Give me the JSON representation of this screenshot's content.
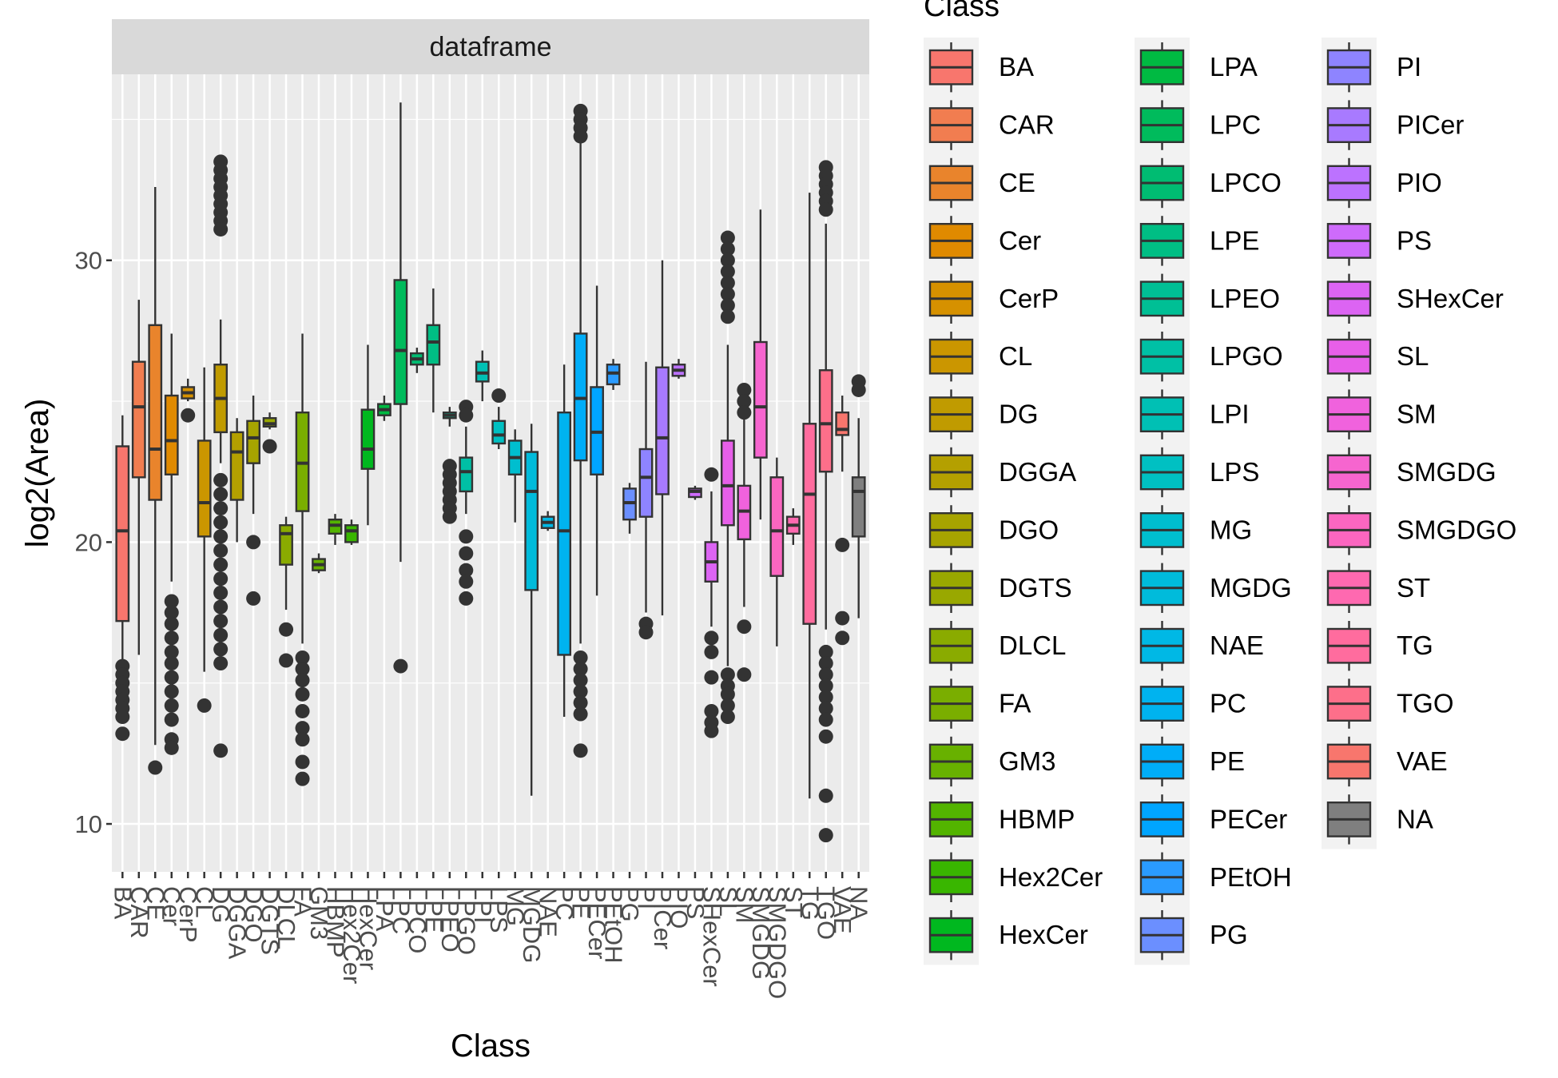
{
  "chart_data": {
    "type": "boxplot",
    "facet_title": "dataframe",
    "xlabel": "Class",
    "ylabel": "log2(Area)",
    "ylim": [
      8.3,
      36.6
    ],
    "yticks": [
      10,
      20,
      30
    ],
    "legend": {
      "title": "Class",
      "placement": "right",
      "columns": 3
    },
    "categories": [
      "BA",
      "CAR",
      "CE",
      "Cer",
      "CerP",
      "CL",
      "DG",
      "DGGA",
      "DGO",
      "DGTS",
      "DLCL",
      "FA",
      "GM3",
      "HBMP",
      "Hex2Cer",
      "HexCer",
      "LPA",
      "LPC",
      "LPCO",
      "LPE",
      "LPEO",
      "LPGO",
      "LPI",
      "LPS",
      "MG",
      "MGDG",
      "NAE",
      "PC",
      "PE",
      "PECer",
      "PEtOH",
      "PG",
      "PI",
      "PICer",
      "PIO",
      "PS",
      "SHexCer",
      "SL",
      "SM",
      "SMGDG",
      "SMGDGO",
      "ST",
      "TG",
      "TGO",
      "VAE",
      "NA"
    ],
    "series": [
      {
        "class": "BA",
        "color": "#F8766D",
        "whisker_low": 14.8,
        "q1": 17.2,
        "median": 20.4,
        "q3": 23.4,
        "whisker_high": 24.5,
        "outliers": [
          15.6,
          15.3,
          15.0,
          14.7,
          14.4,
          14.1,
          13.8,
          13.2
        ]
      },
      {
        "class": "CAR",
        "color": "#F17D50",
        "whisker_low": 16.0,
        "q1": 22.3,
        "median": 24.8,
        "q3": 26.4,
        "whisker_high": 28.6,
        "outliers": []
      },
      {
        "class": "CE",
        "color": "#E9842C",
        "whisker_low": 12.8,
        "q1": 21.5,
        "median": 23.3,
        "q3": 27.7,
        "whisker_high": 32.6,
        "outliers": [
          12.0
        ]
      },
      {
        "class": "Cer",
        "color": "#E08A00",
        "whisker_low": 18.6,
        "q1": 22.4,
        "median": 23.6,
        "q3": 25.2,
        "whisker_high": 27.4,
        "outliers": [
          17.9,
          17.5,
          17.1,
          16.6,
          16.1,
          15.7,
          15.2,
          14.7,
          14.2,
          13.7,
          13.0,
          12.7
        ]
      },
      {
        "class": "CerP",
        "color": "#D69100",
        "whisker_low": 25.0,
        "q1": 25.1,
        "median": 25.3,
        "q3": 25.5,
        "whisker_high": 25.8,
        "outliers": [
          24.5
        ]
      },
      {
        "class": "CL",
        "color": "#CB9600",
        "whisker_low": 15.4,
        "q1": 20.2,
        "median": 21.4,
        "q3": 23.6,
        "whisker_high": 26.2,
        "outliers": [
          14.2
        ]
      },
      {
        "class": "DG",
        "color": "#C09B00",
        "whisker_low": 22.8,
        "q1": 23.9,
        "median": 25.1,
        "q3": 26.3,
        "whisker_high": 27.9,
        "outliers": [
          33.5,
          33.2,
          32.9,
          32.6,
          32.3,
          32.0,
          31.7,
          31.4,
          31.1,
          22.2,
          21.7,
          21.2,
          20.7,
          20.2,
          19.7,
          19.2,
          18.7,
          18.2,
          17.7,
          17.2,
          16.7,
          16.2,
          15.7,
          12.6
        ]
      },
      {
        "class": "DGGA",
        "color": "#B4A000",
        "whisker_low": 20.0,
        "q1": 21.5,
        "median": 23.2,
        "q3": 23.9,
        "whisker_high": 24.4,
        "outliers": []
      },
      {
        "class": "DGO",
        "color": "#A7A400",
        "whisker_low": 21.0,
        "q1": 22.8,
        "median": 23.7,
        "q3": 24.3,
        "whisker_high": 25.2,
        "outliers": [
          20.0,
          18.0
        ]
      },
      {
        "class": "DGTS",
        "color": "#99A800",
        "whisker_low": 24.0,
        "q1": 24.1,
        "median": 24.2,
        "q3": 24.4,
        "whisker_high": 24.6,
        "outliers": [
          23.4
        ]
      },
      {
        "class": "DLCL",
        "color": "#8AAB00",
        "whisker_low": 17.6,
        "q1": 19.2,
        "median": 20.3,
        "q3": 20.6,
        "whisker_high": 20.9,
        "outliers": [
          16.9,
          15.8
        ]
      },
      {
        "class": "FA",
        "color": "#7AAE00",
        "whisker_low": 16.4,
        "q1": 21.1,
        "median": 22.8,
        "q3": 24.6,
        "whisker_high": 27.4,
        "outliers": [
          15.9,
          15.5,
          15.1,
          14.6,
          14.0,
          13.4,
          13.0,
          12.2,
          11.6
        ]
      },
      {
        "class": "GM3",
        "color": "#68B100",
        "whisker_low": 18.9,
        "q1": 19.0,
        "median": 19.2,
        "q3": 19.4,
        "whisker_high": 19.6,
        "outliers": []
      },
      {
        "class": "HBMP",
        "color": "#53B400",
        "whisker_low": 19.9,
        "q1": 20.3,
        "median": 20.6,
        "q3": 20.8,
        "whisker_high": 21.0,
        "outliers": []
      },
      {
        "class": "Hex2Cer",
        "color": "#39B600",
        "whisker_low": 19.9,
        "q1": 20.0,
        "median": 20.4,
        "q3": 20.6,
        "whisker_high": 20.8,
        "outliers": []
      },
      {
        "class": "HexCer",
        "color": "#00B81F",
        "whisker_low": 20.6,
        "q1": 22.6,
        "median": 23.3,
        "q3": 24.7,
        "whisker_high": 27.0,
        "outliers": []
      },
      {
        "class": "LPA",
        "color": "#00BA42",
        "whisker_low": 24.3,
        "q1": 24.5,
        "median": 24.7,
        "q3": 24.9,
        "whisker_high": 25.2,
        "outliers": []
      },
      {
        "class": "LPC",
        "color": "#00BB5C",
        "whisker_low": 19.3,
        "q1": 24.9,
        "median": 26.8,
        "q3": 29.3,
        "whisker_high": 35.6,
        "outliers": [
          15.6
        ]
      },
      {
        "class": "LPCO",
        "color": "#00BC72",
        "whisker_low": 26.0,
        "q1": 26.3,
        "median": 26.5,
        "q3": 26.7,
        "whisker_high": 26.9,
        "outliers": []
      },
      {
        "class": "LPE",
        "color": "#00BE84",
        "whisker_low": 24.6,
        "q1": 26.3,
        "median": 27.1,
        "q3": 27.7,
        "whisker_high": 29.0,
        "outliers": []
      },
      {
        "class": "LPEO",
        "color": "#00BF95",
        "whisker_low": 24.1,
        "q1": 24.4,
        "median": 24.5,
        "q3": 24.6,
        "whisker_high": 24.8,
        "outliers": [
          22.7,
          22.4,
          22.1,
          21.8,
          21.5,
          21.2,
          20.9
        ]
      },
      {
        "class": "LPGO",
        "color": "#00C0A5",
        "whisker_low": 21.0,
        "q1": 21.8,
        "median": 22.5,
        "q3": 23.0,
        "whisker_high": 24.1,
        "outliers": [
          24.8,
          24.5,
          20.2,
          19.6,
          19.0,
          18.6,
          18.0
        ]
      },
      {
        "class": "LPI",
        "color": "#00C0B4",
        "whisker_low": 25.0,
        "q1": 25.7,
        "median": 26.0,
        "q3": 26.4,
        "whisker_high": 26.8,
        "outliers": []
      },
      {
        "class": "LPS",
        "color": "#00C0C2",
        "whisker_low": 23.3,
        "q1": 23.5,
        "median": 23.8,
        "q3": 24.3,
        "whisker_high": 24.8,
        "outliers": [
          25.2
        ]
      },
      {
        "class": "MG",
        "color": "#00BECF",
        "whisker_low": 20.7,
        "q1": 22.4,
        "median": 23.0,
        "q3": 23.6,
        "whisker_high": 24.0,
        "outliers": []
      },
      {
        "class": "MGDG",
        "color": "#00BBDB",
        "whisker_low": 11.0,
        "q1": 18.3,
        "median": 21.8,
        "q3": 23.2,
        "whisker_high": 24.2,
        "outliers": []
      },
      {
        "class": "NAE",
        "color": "#00B8E5",
        "whisker_low": 20.4,
        "q1": 20.5,
        "median": 20.7,
        "q3": 20.9,
        "whisker_high": 21.1,
        "outliers": []
      },
      {
        "class": "PC",
        "color": "#00B3EF",
        "whisker_low": 13.8,
        "q1": 16.0,
        "median": 20.4,
        "q3": 24.6,
        "whisker_high": 26.3,
        "outliers": []
      },
      {
        "class": "PE",
        "color": "#00ADF8",
        "whisker_low": 16.4,
        "q1": 22.9,
        "median": 25.1,
        "q3": 27.4,
        "whisker_high": 34.2,
        "outliers": [
          35.3,
          35.0,
          34.7,
          34.4,
          15.9,
          15.5,
          15.1,
          14.7,
          14.3,
          13.9,
          12.6
        ]
      },
      {
        "class": "PECer",
        "color": "#00A5FF",
        "whisker_low": 18.1,
        "q1": 22.4,
        "median": 23.9,
        "q3": 25.5,
        "whisker_high": 29.1,
        "outliers": []
      },
      {
        "class": "PEtOH",
        "color": "#2A9BFF",
        "whisker_low": 25.4,
        "q1": 25.6,
        "median": 26.0,
        "q3": 26.3,
        "whisker_high": 26.5,
        "outliers": []
      },
      {
        "class": "PG",
        "color": "#6B8FFF",
        "whisker_low": 20.3,
        "q1": 20.8,
        "median": 21.4,
        "q3": 21.9,
        "whisker_high": 22.1,
        "outliers": []
      },
      {
        "class": "PI",
        "color": "#8E84FF",
        "whisker_low": 17.5,
        "q1": 20.9,
        "median": 22.3,
        "q3": 23.3,
        "whisker_high": 26.4,
        "outliers": [
          17.1,
          16.8
        ]
      },
      {
        "class": "PICer",
        "color": "#A87AFF",
        "whisker_low": 17.4,
        "q1": 21.7,
        "median": 23.7,
        "q3": 26.2,
        "whisker_high": 30.0,
        "outliers": []
      },
      {
        "class": "PIO",
        "color": "#BC72FF",
        "whisker_low": 25.8,
        "q1": 25.9,
        "median": 26.1,
        "q3": 26.3,
        "whisker_high": 26.5,
        "outliers": []
      },
      {
        "class": "PS",
        "color": "#CE6BFB",
        "whisker_low": 21.5,
        "q1": 21.6,
        "median": 21.8,
        "q3": 21.9,
        "whisker_high": 22.0,
        "outliers": []
      },
      {
        "class": "SHexCer",
        "color": "#DC64F3",
        "whisker_low": 17.0,
        "q1": 18.6,
        "median": 19.3,
        "q3": 20.0,
        "whisker_high": 21.8,
        "outliers": [
          22.4,
          16.6,
          16.1,
          15.2,
          14.0,
          13.6,
          13.3
        ]
      },
      {
        "class": "SL",
        "color": "#E75FE9",
        "whisker_low": 15.6,
        "q1": 20.6,
        "median": 22.0,
        "q3": 23.6,
        "whisker_high": 27.0,
        "outliers": [
          30.8,
          30.4,
          30.0,
          29.6,
          29.2,
          28.8,
          28.4,
          28.0,
          15.3,
          14.9,
          14.6,
          14.2,
          13.8
        ]
      },
      {
        "class": "SM",
        "color": "#F062DD",
        "whisker_low": 17.7,
        "q1": 20.1,
        "median": 21.1,
        "q3": 22.0,
        "whisker_high": 24.4,
        "outliers": [
          25.4,
          25.0,
          24.6,
          17.0,
          15.3
        ]
      },
      {
        "class": "SMGDG",
        "color": "#F665CF",
        "whisker_low": 20.8,
        "q1": 23.0,
        "median": 24.8,
        "q3": 27.1,
        "whisker_high": 31.8,
        "outliers": []
      },
      {
        "class": "SMGDGO",
        "color": "#FB66C0",
        "whisker_low": 16.3,
        "q1": 18.8,
        "median": 20.4,
        "q3": 22.3,
        "whisker_high": 23.0,
        "outliers": []
      },
      {
        "class": "ST",
        "color": "#FE69B0",
        "whisker_low": 19.9,
        "q1": 20.3,
        "median": 20.6,
        "q3": 20.9,
        "whisker_high": 21.2,
        "outliers": []
      },
      {
        "class": "TG",
        "color": "#FF6C9E",
        "whisker_low": 10.9,
        "q1": 17.1,
        "median": 21.7,
        "q3": 24.2,
        "whisker_high": 32.4,
        "outliers": []
      },
      {
        "class": "TGO",
        "color": "#FD6F8A",
        "whisker_low": 16.9,
        "q1": 22.5,
        "median": 24.2,
        "q3": 26.1,
        "whisker_high": 31.3,
        "outliers": [
          33.3,
          33.0,
          32.7,
          32.4,
          32.1,
          31.8,
          16.1,
          15.7,
          15.3,
          14.9,
          14.5,
          14.1,
          13.7,
          13.1,
          11.0,
          9.6
        ]
      },
      {
        "class": "VAE",
        "color": "#F8766D",
        "whisker_low": 22.5,
        "q1": 23.8,
        "median": 24.0,
        "q3": 24.6,
        "whisker_high": 25.2,
        "outliers": [
          19.9,
          17.3,
          16.6
        ]
      },
      {
        "class": "NA",
        "color": "#7F7F7F",
        "whisker_low": 17.3,
        "q1": 20.2,
        "median": 21.8,
        "q3": 22.3,
        "whisker_high": 24.4,
        "outliers": [
          25.7,
          25.4
        ]
      }
    ]
  }
}
